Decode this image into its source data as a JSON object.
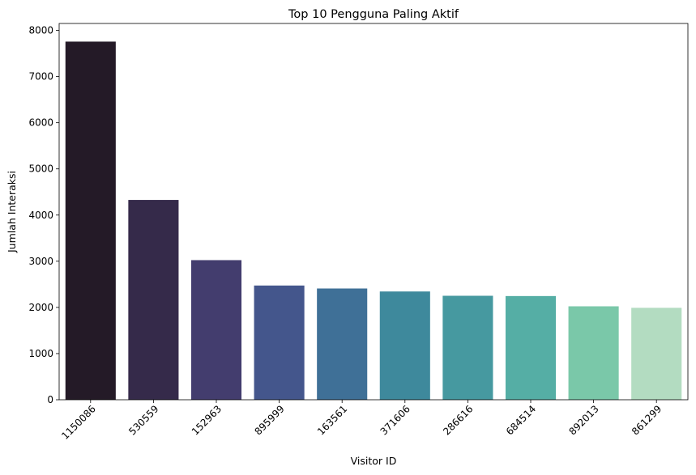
{
  "chart_data": {
    "type": "bar",
    "title": "Top 10 Pengguna Paling Aktif",
    "xlabel": "Visitor ID",
    "ylabel": "Jumlah Interaksi",
    "categories": [
      "1150086",
      "530559",
      "152963",
      "895999",
      "163561",
      "371606",
      "286616",
      "684514",
      "892013",
      "861299"
    ],
    "values": [
      7757,
      4328,
      3024,
      2474,
      2410,
      2345,
      2252,
      2246,
      2024,
      1991
    ],
    "ylim": [
      0,
      8150
    ],
    "yticks": [
      "0",
      "1000",
      "2000",
      "3000",
      "4000",
      "5000",
      "6000",
      "7000",
      "8000"
    ],
    "grid": false,
    "legend": "none",
    "colors": [
      "#241a27",
      "#352a4a",
      "#433d6e",
      "#44568c",
      "#3f7097",
      "#3e899c",
      "#4699a0",
      "#55aea5",
      "#7ac8a9",
      "#b3dcc1"
    ]
  }
}
